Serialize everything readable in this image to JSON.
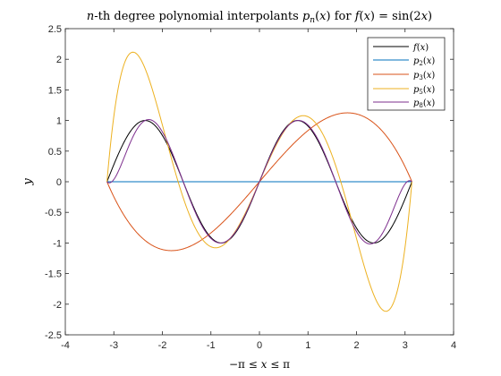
{
  "chart_data": {
    "type": "line",
    "title": "n-th degree polynomial interpolants p_n(x) for f(x) = sin(2x)",
    "xlabel": "−π ≤ x ≤ π",
    "ylabel": "y",
    "xlim": [
      -4,
      4
    ],
    "ylim": [
      -2.5,
      2.5
    ],
    "xticks": [
      "-4",
      "-3",
      "-2",
      "-1",
      "0",
      "1",
      "2",
      "3",
      "4"
    ],
    "yticks": [
      "-2.5",
      "-2",
      "-1.5",
      "-1",
      "-0.5",
      "0",
      "0.5",
      "1",
      "1.5",
      "2",
      "2.5"
    ],
    "grid": false,
    "legend_position": "top-right",
    "x_domain": [
      -3.14159,
      3.14159
    ],
    "series": [
      {
        "name": "f(x)",
        "color": "#000000",
        "function": "sin(2x)"
      },
      {
        "name": "p2(x)",
        "color": "#0072BD",
        "degree": 2
      },
      {
        "name": "p3(x)",
        "color": "#D95319",
        "degree": 3
      },
      {
        "name": "p5(x)",
        "color": "#EDB120",
        "degree": 5
      },
      {
        "name": "p8(x)",
        "color": "#7E2F8E",
        "degree": 8
      }
    ]
  }
}
